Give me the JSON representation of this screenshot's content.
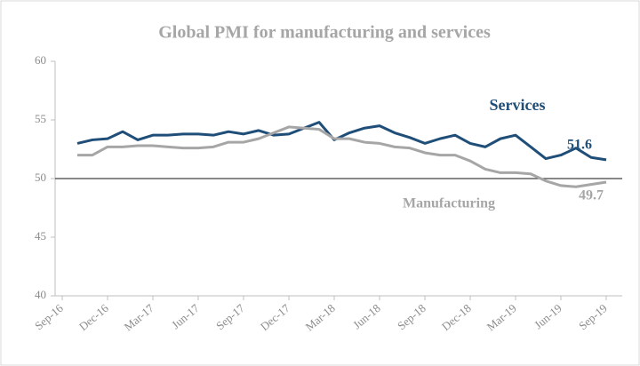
{
  "chart_data": {
    "type": "line",
    "title": "Global PMI for manufacturing and services",
    "categories": [
      "Sep-16",
      null,
      null,
      "Dec-16",
      null,
      null,
      "Mar-17",
      null,
      null,
      "Jun-17",
      null,
      null,
      "Sep-17",
      null,
      null,
      "Dec-17",
      null,
      null,
      "Mar-18",
      null,
      null,
      "Jun-18",
      null,
      null,
      "Sep-18",
      null,
      null,
      "Dec-18",
      null,
      null,
      "Mar-19",
      null,
      null,
      "Jun-19",
      null,
      null,
      "Sep-19"
    ],
    "series": [
      {
        "name": "Services",
        "color": "#1f4e79",
        "values": [
          null,
          53.0,
          53.3,
          53.4,
          54.0,
          53.3,
          53.7,
          53.7,
          53.8,
          53.8,
          53.7,
          54.0,
          53.8,
          54.1,
          53.7,
          53.8,
          54.3,
          54.8,
          53.3,
          53.9,
          54.3,
          54.5,
          53.9,
          53.5,
          53.0,
          53.4,
          53.7,
          53.0,
          52.7,
          53.4,
          53.7,
          52.7,
          51.7,
          52.0,
          52.6,
          51.8,
          51.6
        ]
      },
      {
        "name": "Manufacturing",
        "color": "#a6a6a6",
        "values": [
          null,
          52.0,
          52.0,
          52.7,
          52.7,
          52.8,
          52.8,
          52.7,
          52.6,
          52.6,
          52.7,
          53.1,
          53.1,
          53.4,
          53.9,
          54.4,
          54.3,
          54.2,
          53.4,
          53.4,
          53.1,
          53.0,
          52.7,
          52.6,
          52.2,
          52.0,
          52.0,
          51.5,
          50.8,
          50.5,
          50.5,
          50.4,
          49.8,
          49.4,
          49.3,
          49.5,
          49.7
        ]
      }
    ],
    "reference_line": 50,
    "ylim": [
      40,
      60
    ],
    "yticks": [
      40,
      45,
      50,
      55,
      60
    ]
  }
}
